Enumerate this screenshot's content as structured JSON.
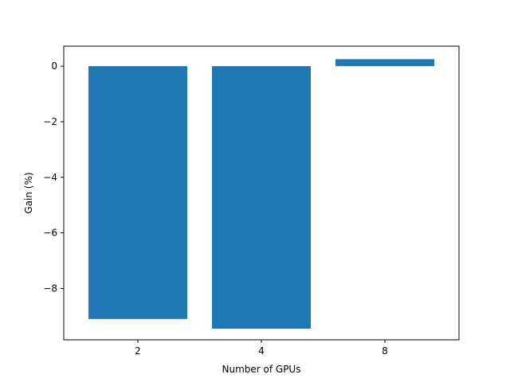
{
  "chart_data": {
    "type": "bar",
    "title": "",
    "xlabel": "Number of GPUs",
    "ylabel": "Gain (%)",
    "categories": [
      "2",
      "4",
      "8"
    ],
    "values": [
      -9.1,
      -9.45,
      0.25
    ],
    "ylim": [
      -9.85,
      0.72
    ],
    "yticks": [
      0,
      -2,
      -4,
      -6,
      -8
    ],
    "ytick_labels": [
      "0",
      "−2",
      "−4",
      "−6",
      "−8"
    ],
    "grid": false,
    "bar_color": "#1f77b4"
  }
}
